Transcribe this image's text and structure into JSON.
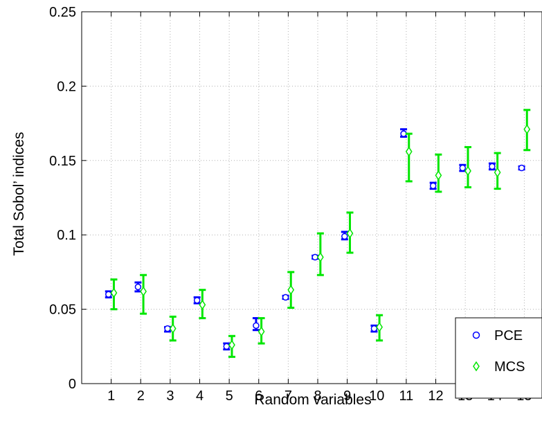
{
  "chart_data": {
    "type": "scatter",
    "title": "",
    "xlabel": "Random variables",
    "ylabel": "Total Sobol’ indices",
    "x": [
      1,
      2,
      3,
      4,
      5,
      6,
      7,
      8,
      9,
      10,
      11,
      12,
      13,
      14,
      15
    ],
    "xlim": [
      0,
      15.6
    ],
    "ylim": [
      0,
      0.25
    ],
    "yticks": [
      "0",
      "0.05",
      "0.1",
      "0.15",
      "0.2",
      "0.25"
    ],
    "xticks": [
      "1",
      "2",
      "3",
      "4",
      "5",
      "6",
      "7",
      "8",
      "9",
      "10",
      "11",
      "12",
      "13",
      "14",
      "15"
    ],
    "grid": true,
    "legend_position": "bottom-right",
    "series": [
      {
        "name": "PCE",
        "marker": "circle",
        "color": "#0000ff",
        "values": [
          0.06,
          0.065,
          0.037,
          0.056,
          0.025,
          0.039,
          0.058,
          0.085,
          0.099,
          0.037,
          0.168,
          0.133,
          0.145,
          0.146,
          0.145
        ],
        "err_low": [
          0.058,
          0.062,
          0.035,
          0.054,
          0.023,
          0.036,
          0.057,
          0.084,
          0.097,
          0.035,
          0.166,
          0.131,
          0.143,
          0.144,
          0.144
        ],
        "err_high": [
          0.062,
          0.068,
          0.038,
          0.058,
          0.027,
          0.044,
          0.059,
          0.086,
          0.102,
          0.039,
          0.171,
          0.135,
          0.147,
          0.148,
          0.146
        ]
      },
      {
        "name": "MCS",
        "marker": "diamond",
        "color": "#00e600",
        "values": [
          0.061,
          0.062,
          0.037,
          0.053,
          0.026,
          0.035,
          0.063,
          0.085,
          0.101,
          0.038,
          0.156,
          0.14,
          0.143,
          0.142,
          0.171
        ],
        "err_low": [
          0.05,
          0.047,
          0.029,
          0.044,
          0.018,
          0.027,
          0.051,
          0.073,
          0.088,
          0.029,
          0.136,
          0.129,
          0.132,
          0.131,
          0.157
        ],
        "err_high": [
          0.07,
          0.073,
          0.045,
          0.063,
          0.032,
          0.044,
          0.075,
          0.101,
          0.115,
          0.046,
          0.168,
          0.154,
          0.159,
          0.155,
          0.184
        ]
      }
    ]
  }
}
